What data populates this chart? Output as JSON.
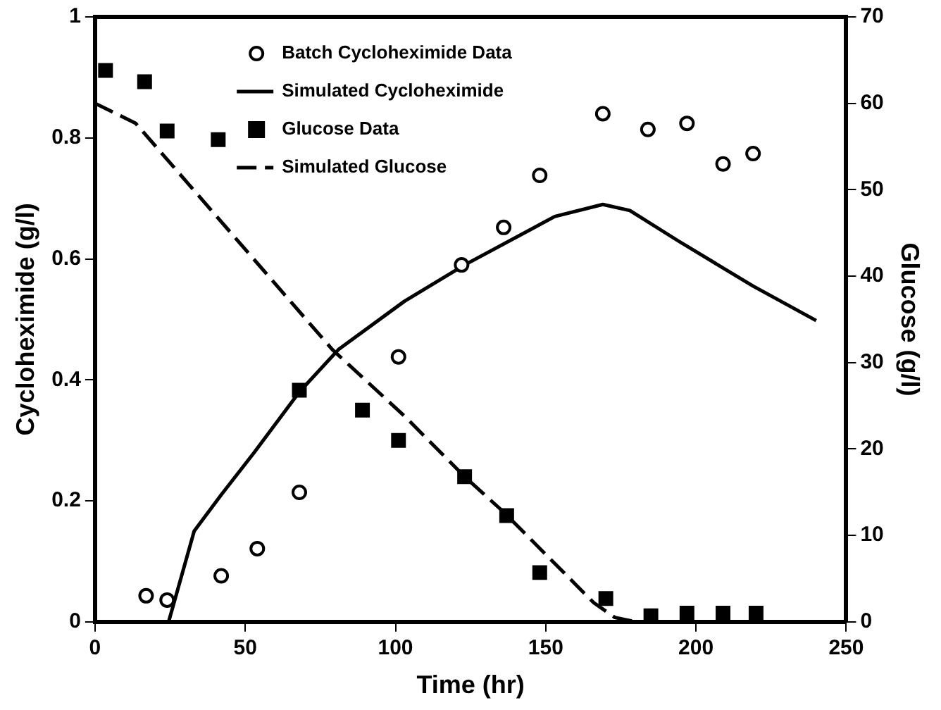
{
  "chart_data": {
    "type": "scatter",
    "xlabel": "Time (hr)",
    "ylabel": "Cycloheximide (g/l)",
    "y2label": "Glucose (g/l)",
    "xlim": [
      0,
      250
    ],
    "xticks": [
      0,
      50,
      100,
      150,
      200,
      250
    ],
    "ylim": [
      0,
      1
    ],
    "yticks": [
      0,
      {
        "value": 0.2,
        "label": "0.2"
      },
      {
        "value": 0.4,
        "label": "0.4"
      },
      {
        "value": 0.6,
        "label": "0.6"
      },
      {
        "value": 0.8,
        "label": "0.8"
      },
      1
    ],
    "y2lim": [
      0,
      70
    ],
    "y2ticks": [
      0,
      10,
      20,
      30,
      40,
      50,
      60,
      70
    ],
    "grid": false,
    "legend": "top",
    "series": [
      {
        "name": "Batch Cycloheximide Data",
        "type": "scatter",
        "marker": "circle",
        "color": "#000000",
        "x": [
          17,
          24,
          42,
          54,
          68,
          101,
          122,
          136,
          148,
          169,
          184,
          197,
          209,
          219
        ],
        "values": [
          0.043,
          0.036,
          0.076,
          0.121,
          0.214,
          0.438,
          0.59,
          0.652,
          0.738,
          0.84,
          0.814,
          0.824,
          0.757,
          0.774
        ]
      },
      {
        "name": "Simulated Cycloheximide",
        "type": "line",
        "marker": "none",
        "line_style": "solid",
        "color": "#000000",
        "x": [
          24.5,
          33,
          42,
          53,
          68,
          81,
          103,
          123,
          153,
          169,
          178,
          194,
          219,
          240
        ],
        "values": [
          0,
          0.15,
          0.21,
          0.28,
          0.38,
          0.45,
          0.53,
          0.59,
          0.67,
          0.69,
          0.68,
          0.63,
          0.555,
          0.498
        ]
      },
      {
        "name": "Glucose Data",
        "type": "scatter",
        "marker": "square",
        "axis": "y2",
        "color": "#000000",
        "x": [
          3.5,
          16.5,
          24,
          41,
          68,
          89,
          101,
          123,
          137,
          148,
          170,
          185,
          197,
          209,
          220
        ],
        "values": [
          63.8,
          62.5,
          56.8,
          55.8,
          26.8,
          24.5,
          21,
          16.8,
          12.3,
          5.7,
          2.7,
          0.7,
          1,
          1,
          1
        ]
      },
      {
        "name": "Simulated Glucose",
        "type": "line",
        "marker": "none",
        "line_style": "dashed",
        "axis": "y2",
        "color": "#000000",
        "x": [
          0,
          13.5,
          79,
          103,
          123,
          136,
          166,
          173,
          180
        ],
        "values": [
          60,
          57.7,
          31.5,
          23.8,
          16.8,
          12.7,
          2.2,
          0.5,
          0
        ]
      }
    ]
  }
}
